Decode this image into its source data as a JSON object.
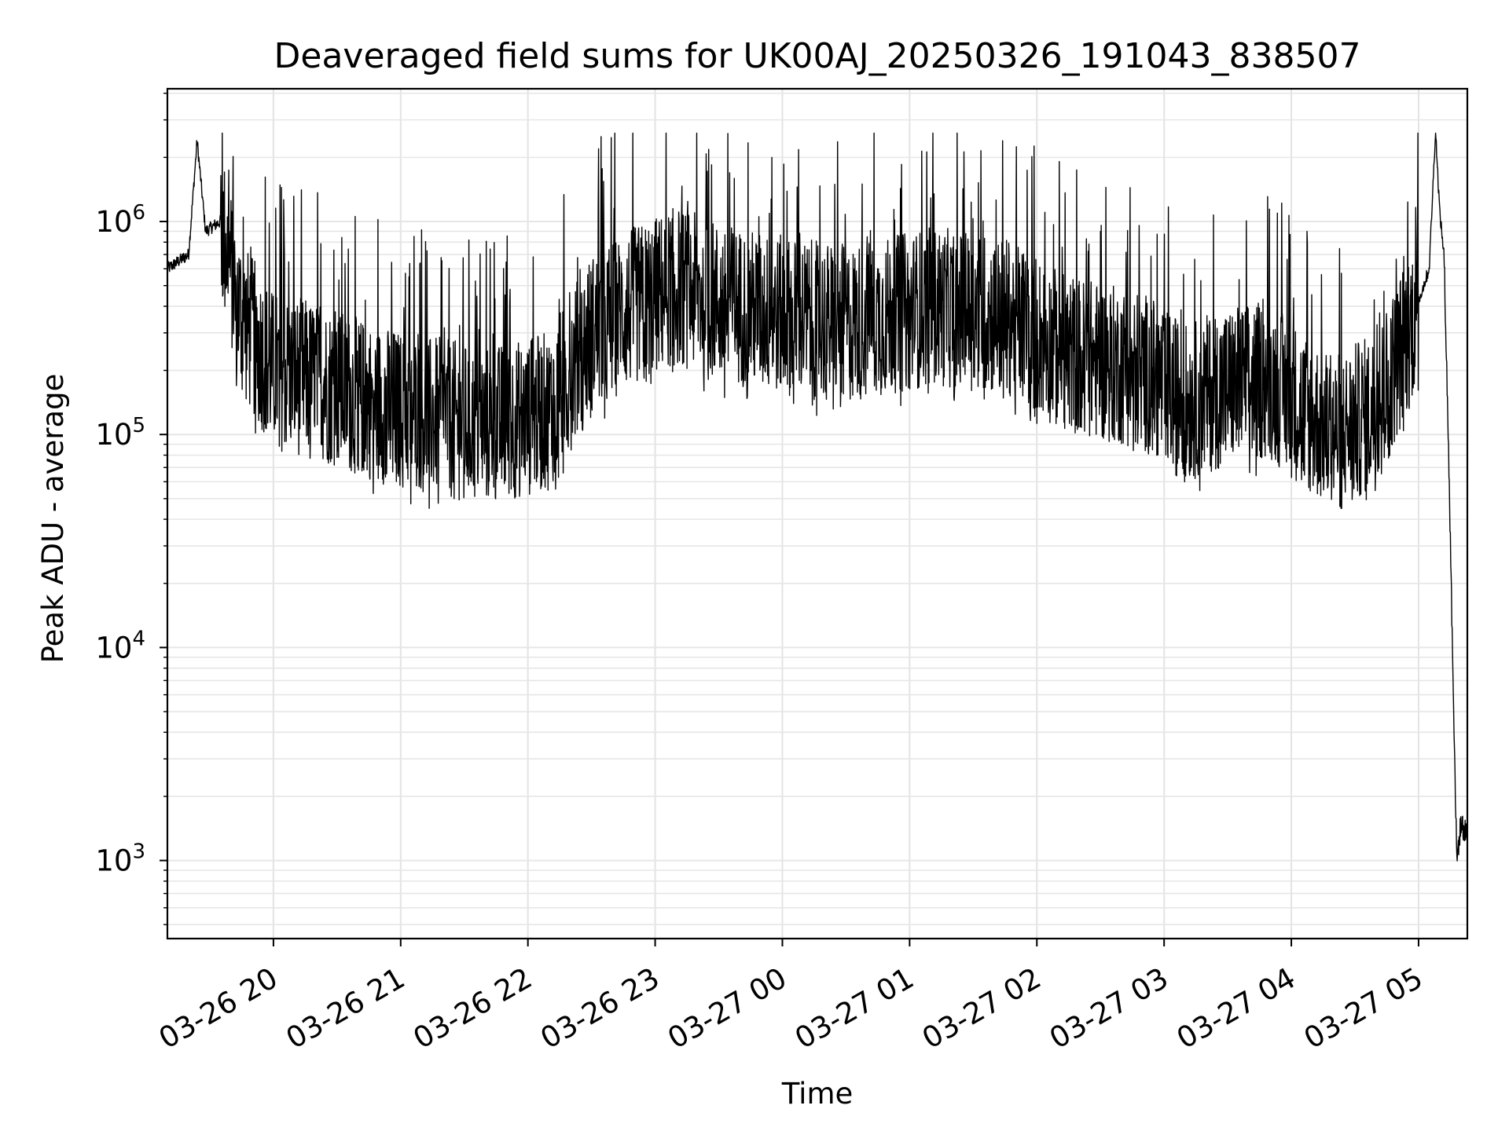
{
  "chart_data": {
    "type": "line",
    "title": "Deaveraged field sums for UK00AJ_20250326_191043_838507",
    "xlabel": "Time",
    "ylabel": "Peak ADU - average",
    "yscale": "log",
    "ylim": [
      430,
      4200000
    ],
    "xlim": [
      "2025-03-26 19:10",
      "2025-03-27 05:23"
    ],
    "grid": "on (major and minor)",
    "line_color": "#000000",
    "x_ticks": [
      "03-26 20",
      "03-26 21",
      "03-26 22",
      "03-26 23",
      "03-27 00",
      "03-27 01",
      "03-27 02",
      "03-27 03",
      "03-27 04",
      "03-27 05"
    ],
    "y_ticks": [
      {
        "base": "10",
        "exp": "3",
        "value": 1000
      },
      {
        "base": "10",
        "exp": "4",
        "value": 10000
      },
      {
        "base": "10",
        "exp": "5",
        "value": 100000
      },
      {
        "base": "10",
        "exp": "6",
        "value": 1000000
      }
    ],
    "series": [
      {
        "x": [
          "2025-03-26 19:10",
          "2025-03-26 19:20",
          "2025-03-26 19:24",
          "2025-03-26 19:28",
          "2025-03-26 19:35",
          "2025-03-26 19:45",
          "2025-03-26 20:00",
          "2025-03-26 20:20",
          "2025-03-26 20:40",
          "2025-03-26 21:00",
          "2025-03-26 21:20",
          "2025-03-26 21:40",
          "2025-03-26 22:00",
          "2025-03-26 22:10",
          "2025-03-26 22:30",
          "2025-03-26 22:50",
          "2025-03-26 23:10",
          "2025-03-26 23:30",
          "2025-03-26 23:50",
          "2025-03-27 00:10",
          "2025-03-27 00:30",
          "2025-03-27 00:50",
          "2025-03-27 01:10",
          "2025-03-27 01:30",
          "2025-03-27 01:50",
          "2025-03-27 02:10",
          "2025-03-27 02:30",
          "2025-03-27 02:50",
          "2025-03-27 03:10",
          "2025-03-27 03:30",
          "2025-03-27 03:50",
          "2025-03-27 04:10",
          "2025-03-27 04:20",
          "2025-03-27 04:40",
          "2025-03-27 04:55",
          "2025-03-27 05:05",
          "2025-03-27 05:08",
          "2025-03-27 05:10",
          "2025-03-27 05:12",
          "2025-03-27 05:14",
          "2025-03-27 05:16",
          "2025-03-27 05:18",
          "2025-03-27 05:20",
          "2025-03-27 05:23"
        ],
        "y": [
          600000,
          700000,
          2400000,
          900000,
          1000000,
          350000,
          200000,
          180000,
          150000,
          130000,
          120000,
          110000,
          120000,
          130000,
          300000,
          400000,
          500000,
          420000,
          380000,
          350000,
          330000,
          360000,
          400000,
          380000,
          350000,
          250000,
          220000,
          200000,
          140000,
          170000,
          180000,
          120000,
          100000,
          130000,
          300000,
          600000,
          2700000,
          1100000,
          700000,
          100000,
          10000,
          1000,
          1500,
          1300
        ],
        "noise": {
          "approx_spike_max": 2500000,
          "approx_dip_min": 45000
        }
      }
    ]
  }
}
